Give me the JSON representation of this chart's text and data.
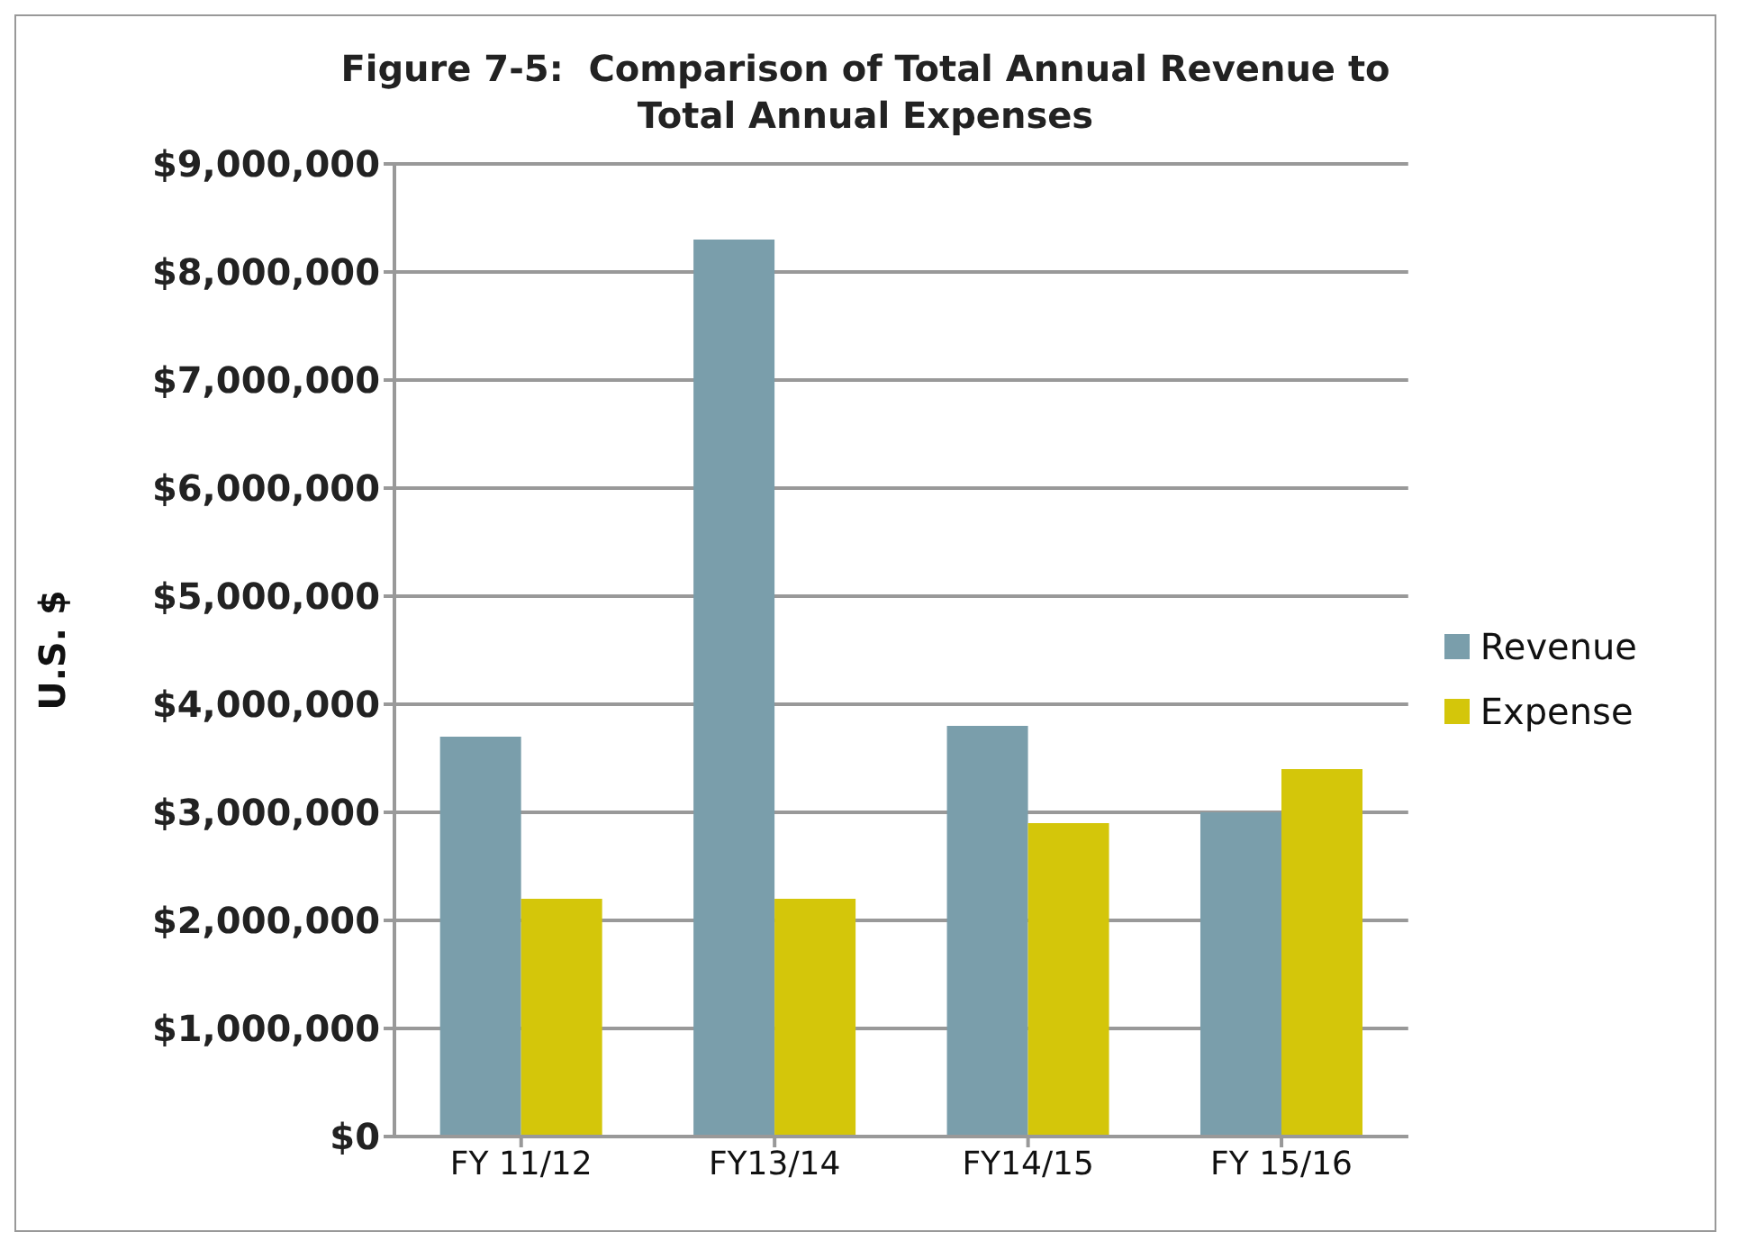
{
  "chart_data": {
    "type": "bar",
    "title": "Figure 7-5:  Comparison of Total Annual Revenue to\nTotal Annual Expenses",
    "ylabel": "U.S. $",
    "categories": [
      "FY 11/12",
      "FY13/14",
      "FY14/15",
      "FY 15/16"
    ],
    "series": [
      {
        "name": "Revenue",
        "color": "#7a9eab",
        "values": [
          3700000,
          8300000,
          3800000,
          3000000
        ]
      },
      {
        "name": "Expense",
        "color": "#d4c60a",
        "values": [
          2200000,
          2200000,
          2900000,
          3400000
        ]
      }
    ],
    "ylim": [
      0,
      9000000
    ],
    "yticks": [
      {
        "value": 0,
        "label": "$0"
      },
      {
        "value": 1000000,
        "label": "$1,000,000"
      },
      {
        "value": 2000000,
        "label": "$2,000,000"
      },
      {
        "value": 3000000,
        "label": "$3,000,000"
      },
      {
        "value": 4000000,
        "label": "$4,000,000"
      },
      {
        "value": 5000000,
        "label": "$5,000,000"
      },
      {
        "value": 6000000,
        "label": "$6,000,000"
      },
      {
        "value": 7000000,
        "label": "$7,000,000"
      },
      {
        "value": 8000000,
        "label": "$8,000,000"
      },
      {
        "value": 9000000,
        "label": "$9,000,000"
      }
    ],
    "grid": "y",
    "legend": "right"
  }
}
